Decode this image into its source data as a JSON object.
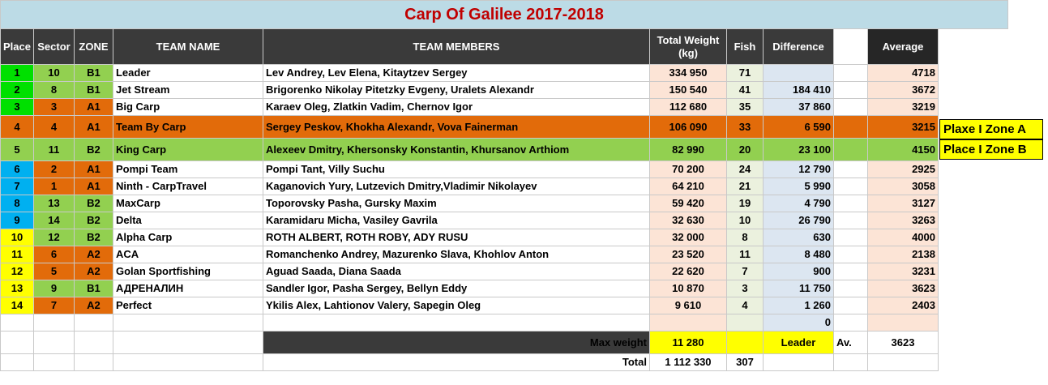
{
  "title": "Carp Of Galilee 2017-2018",
  "headers": {
    "place": "Place",
    "sector": "Sector",
    "zone": "ZONE",
    "team_name": "TEAM NAME",
    "team_members": "TEAM MEMBERS",
    "total_weight": "Total Weight (kg)",
    "fish": "Fish",
    "difference": "Difference",
    "average": "Average"
  },
  "rows": [
    {
      "place": "1",
      "sector": "10",
      "zone": "B1",
      "team": "Leader",
      "members": "Lev Andrey, Lev Elena, Kitaytzev Sergey",
      "weight": "334 950",
      "fish": "71",
      "diff": "",
      "avg": "4718"
    },
    {
      "place": "2",
      "sector": "8",
      "zone": "B1",
      "team": "Jet Stream",
      "members": "Brigorenko Nikolay Pitetzky Evgeny, Uralets Alexandr",
      "weight": "150 540",
      "fish": "41",
      "diff": "184 410",
      "avg": "3672"
    },
    {
      "place": "3",
      "sector": "3",
      "zone": "A1",
      "team": "Big Carp",
      "members": "Karaev Oleg, Zlatkin Vadim, Chernov Igor",
      "weight": "112 680",
      "fish": "35",
      "diff": "37 860",
      "avg": "3219"
    },
    {
      "place": "4",
      "sector": "4",
      "zone": "A1",
      "team": "Team By Carp",
      "members": "Sergey Peskov, Khokha Alexandr,  Vova Fainerman",
      "weight": "106 090",
      "fish": "33",
      "diff": "6 590",
      "avg": "3215"
    },
    {
      "place": "5",
      "sector": "11",
      "zone": "B2",
      "team": "King Carp",
      "members": "Alexeev Dmitry, Khersonsky Konstantin, Khursanov Arthiom",
      "weight": "82 990",
      "fish": "20",
      "diff": "23 100",
      "avg": "4150"
    },
    {
      "place": "6",
      "sector": "2",
      "zone": "A1",
      "team": "Pompi Team",
      "members": "Pompi Tant, Villy Suchu",
      "weight": "70 200",
      "fish": "24",
      "diff": "12 790",
      "avg": "2925"
    },
    {
      "place": "7",
      "sector": "1",
      "zone": "A1",
      "team": "Ninth - CarpTravel",
      "members": "Kaganovich Yury, Lutzevich Dmitry,Vladimir Nikolayev",
      "weight": "64 210",
      "fish": "21",
      "diff": "5 990",
      "avg": "3058"
    },
    {
      "place": "8",
      "sector": "13",
      "zone": "B2",
      "team": "MaxCarp",
      "members": "Toporovsky Pasha, Gursky Maxim",
      "weight": "59 420",
      "fish": "19",
      "diff": "4 790",
      "avg": "3127"
    },
    {
      "place": "9",
      "sector": "14",
      "zone": "B2",
      "team": "Delta",
      "members": "Karamidaru Micha, Vasiley Gavrila",
      "weight": "32 630",
      "fish": "10",
      "diff": "26 790",
      "avg": "3263"
    },
    {
      "place": "10",
      "sector": "12",
      "zone": "B2",
      "team": "Alpha Carp",
      "members": "ROTH ALBERT, ROTH ROBY, ADY RUSU",
      "weight": "32 000",
      "fish": "8",
      "diff": "630",
      "avg": "4000"
    },
    {
      "place": "11",
      "sector": "6",
      "zone": "A2",
      "team": "ACA",
      "members": "Romanchenko Andrey, Mazurenko Slava, Khohlov Anton",
      "weight": "23 520",
      "fish": "11",
      "diff": "8 480",
      "avg": "2138"
    },
    {
      "place": "12",
      "sector": "5",
      "zone": "A2",
      "team": "Golan Sportfishing",
      "members": "Aguad Saada, Diana Saada",
      "weight": "22 620",
      "fish": "7",
      "diff": "900",
      "avg": "3231"
    },
    {
      "place": "13",
      "sector": "9",
      "zone": "B1",
      "team": "АДРЕНАЛИН",
      "members": "Sandler Igor, Pasha Sergey, Bellyn Eddy",
      "weight": "10 870",
      "fish": "3",
      "diff": "11 750",
      "avg": "3623"
    },
    {
      "place": "14",
      "sector": "7",
      "zone": "A2",
      "team": "Perfect",
      "members": "Ykilis Alex, Lahtionov Valery, Sapegin Oleg",
      "weight": "9 610",
      "fish": "4",
      "diff": "1 260",
      "avg": "2403"
    }
  ],
  "empty_row_diff": "0",
  "max_weight_label": "Max weight",
  "max_weight_value": "11 280",
  "leader_label": "Leader",
  "av_label": "Av.",
  "av_value": "3623",
  "total_label": "Total",
  "total_weight": "1 112 330",
  "total_fish": "307",
  "side_labels": {
    "zone_a": "Plaxe I Zone A",
    "zone_b": "Place I Zone B"
  },
  "colors": {
    "title_bg": "#bcdbe6",
    "title_text": "#c00000",
    "header_bg": "#3a3a3a",
    "green_bright": "#00e000",
    "green_light": "#92d050",
    "orange": "#e26b0a",
    "yellow": "#ffff00"
  }
}
